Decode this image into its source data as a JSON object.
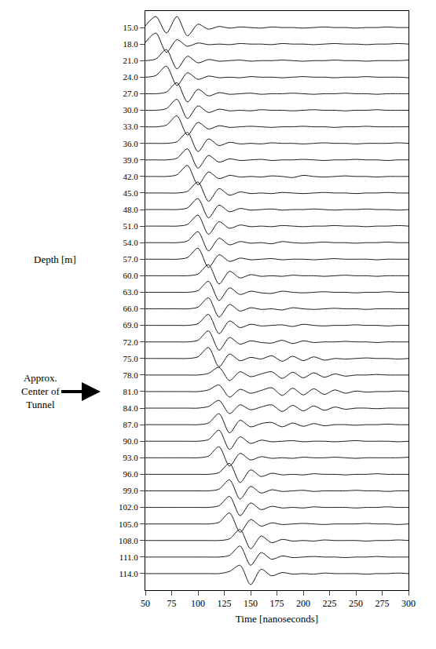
{
  "chart_data": {
    "type": "line",
    "x_label": "Time [nanoseconds]",
    "y_label": "Depth [m]",
    "annotations": [
      {
        "text": "Approx. Center of Tunnel",
        "y": 81
      }
    ],
    "color": "#000000",
    "grid": false,
    "xlim": [
      50,
      300
    ],
    "xticks": [
      50,
      75,
      100,
      125,
      150,
      175,
      200,
      225,
      250,
      275,
      300
    ],
    "ylim": [
      117,
      12
    ],
    "yticks": [
      {
        "value": 15,
        "label": "15.0"
      },
      {
        "value": 18,
        "label": "18.0"
      },
      {
        "value": 21,
        "label": "21.0"
      },
      {
        "value": 24,
        "label": "24.0"
      },
      {
        "value": 27,
        "label": "27.0"
      },
      {
        "value": 30,
        "label": "30.0"
      },
      {
        "value": 33,
        "label": "33.0"
      },
      {
        "value": 36,
        "label": "36.0"
      },
      {
        "value": 39,
        "label": "39.0"
      },
      {
        "value": 42,
        "label": "42.0"
      },
      {
        "value": 45,
        "label": "45.0"
      },
      {
        "value": 48,
        "label": "48.0"
      },
      {
        "value": 51,
        "label": "51.0"
      },
      {
        "value": 54,
        "label": "54.0"
      },
      {
        "value": 57,
        "label": "57.0"
      },
      {
        "value": 60,
        "label": "60.0"
      },
      {
        "value": 63,
        "label": "63.0"
      },
      {
        "value": 66,
        "label": "66.0"
      },
      {
        "value": 69,
        "label": "69.0"
      },
      {
        "value": 72,
        "label": "72.0"
      },
      {
        "value": 75,
        "label": "75.0"
      },
      {
        "value": 78,
        "label": "78.0"
      },
      {
        "value": 81,
        "label": "81.0"
      },
      {
        "value": 84,
        "label": "84.0"
      },
      {
        "value": 87,
        "label": "87.0"
      },
      {
        "value": 90,
        "label": "90.0"
      },
      {
        "value": 93,
        "label": "93.0"
      },
      {
        "value": 96,
        "label": "96.0"
      },
      {
        "value": 99,
        "label": "99.0"
      },
      {
        "value": 102,
        "label": "102.0"
      },
      {
        "value": 105,
        "label": "105.0"
      },
      {
        "value": 108,
        "label": "108.0"
      },
      {
        "value": 111,
        "label": "111.0"
      },
      {
        "value": 114,
        "label": "114.0"
      }
    ],
    "x": [
      50,
      60,
      70,
      80,
      90,
      100,
      110,
      120,
      130,
      140,
      150,
      160,
      170,
      180,
      190,
      200,
      210,
      220,
      230,
      240,
      250,
      260,
      270,
      280,
      290,
      300
    ],
    "series": [
      {
        "values": [
          14.7,
          13.0,
          16.0,
          13.0,
          16.5,
          14.4,
          15.3,
          14.8,
          15.1,
          14.9,
          15,
          15.1,
          14.9,
          15,
          15,
          15.1,
          15,
          14.9,
          15,
          15,
          15.1,
          15,
          15,
          14.9,
          15,
          15
        ]
      },
      {
        "values": [
          17.7,
          16,
          19.5,
          17.2,
          18.4,
          17.8,
          18.1,
          18,
          18.1,
          17.9,
          18,
          18,
          18.1,
          17.9,
          18,
          18,
          18.1,
          18,
          17.9,
          18,
          18,
          18.1,
          18,
          18,
          17.9,
          18
        ]
      },
      {
        "values": [
          21,
          20.7,
          19,
          22.5,
          20.2,
          21.4,
          20.8,
          21.1,
          21,
          20.9,
          21.1,
          21,
          21,
          20.9,
          21,
          21.1,
          21,
          21,
          20.9,
          21,
          21,
          21.1,
          21,
          21,
          21,
          20.9
        ]
      },
      {
        "values": [
          24,
          23.7,
          22,
          25.5,
          23.2,
          24.4,
          23.8,
          24.1,
          24,
          24.1,
          23.9,
          24,
          24,
          24.1,
          24,
          23.9,
          24,
          24,
          24.1,
          24,
          24,
          23.9,
          24,
          24,
          24,
          24.1
        ]
      },
      {
        "values": [
          27,
          27,
          26.7,
          25,
          28.5,
          26.2,
          27.4,
          26.8,
          27.1,
          27,
          26.9,
          27.1,
          27,
          27,
          26.9,
          27,
          27.1,
          27,
          27,
          26.9,
          27,
          27,
          27.1,
          27,
          27,
          27
        ]
      },
      {
        "values": [
          30,
          30,
          29.7,
          28,
          31.5,
          29.2,
          30.4,
          29.8,
          30.1,
          30,
          30.1,
          29.9,
          30,
          30,
          30.1,
          30,
          29.9,
          30,
          30,
          30.1,
          30,
          30,
          29.9,
          30,
          30,
          30
        ]
      },
      {
        "values": [
          33,
          33,
          32.7,
          31,
          34.5,
          32.2,
          33.4,
          32.8,
          33.1,
          33,
          32.9,
          33,
          33.1,
          33,
          33,
          32.9,
          33,
          33,
          33.1,
          33,
          33,
          32.9,
          33,
          33,
          33,
          33
        ]
      },
      {
        "values": [
          36,
          36,
          36,
          35.7,
          34,
          37.5,
          35.2,
          36.4,
          35.8,
          36.1,
          36,
          36.1,
          35.9,
          36,
          36,
          36.1,
          36,
          35.9,
          36,
          36,
          36.1,
          36,
          36,
          36,
          35.9,
          36
        ]
      },
      {
        "values": [
          39,
          39,
          39,
          38.7,
          37,
          40.5,
          38.2,
          39.4,
          38.8,
          39.1,
          39,
          38.9,
          39.1,
          39,
          39,
          38.9,
          39,
          39.1,
          39,
          39,
          38.9,
          39,
          39,
          39.1,
          39,
          39
        ]
      },
      {
        "values": [
          42,
          42,
          42,
          41.7,
          40,
          43.5,
          41.2,
          42.4,
          41.8,
          42.1,
          42,
          42.1,
          41.9,
          42,
          42.2,
          41.8,
          42,
          42.1,
          42,
          41.9,
          42,
          42,
          42.1,
          42,
          42,
          42
        ]
      },
      {
        "values": [
          45,
          45,
          45,
          45,
          44.7,
          43,
          46.5,
          44.2,
          45.4,
          44.8,
          45.1,
          45,
          45.1,
          44.9,
          45,
          45.1,
          45,
          44.9,
          45,
          45,
          45.1,
          45,
          45,
          44.9,
          45,
          45
        ]
      },
      {
        "values": [
          48,
          48,
          48,
          48,
          47.7,
          46,
          49.5,
          47.2,
          48.4,
          47.8,
          48.1,
          48,
          47.9,
          48.1,
          48,
          48,
          47.9,
          48,
          48.1,
          48,
          48,
          47.9,
          48,
          48,
          48.1,
          48
        ]
      },
      {
        "values": [
          51,
          51,
          51,
          51,
          50.7,
          49,
          52.5,
          50.2,
          51.4,
          50.8,
          51.1,
          51,
          51.1,
          50.9,
          51,
          51.1,
          51,
          51,
          50.9,
          51,
          51,
          51.1,
          51,
          51,
          50.9,
          51
        ]
      },
      {
        "values": [
          54,
          54,
          54,
          54,
          53.7,
          52,
          55.5,
          53.2,
          54.4,
          53.8,
          54.1,
          54,
          54.2,
          53.8,
          54,
          54.1,
          54,
          53.9,
          54,
          54,
          54.1,
          54,
          54,
          53.9,
          54,
          54
        ]
      },
      {
        "values": [
          57,
          57,
          57,
          57,
          56.7,
          55,
          58.5,
          56.2,
          57.4,
          56.8,
          57.1,
          57,
          56.9,
          57.1,
          57,
          57,
          57.1,
          57,
          56.9,
          57,
          57,
          57,
          57.1,
          57,
          57,
          57
        ]
      },
      {
        "values": [
          60,
          60,
          60,
          60,
          60,
          59.7,
          58,
          61.5,
          59.2,
          60.4,
          59.8,
          60.1,
          60,
          60.1,
          59.9,
          60,
          60,
          60.1,
          60,
          59.9,
          60,
          60,
          60.1,
          60,
          60,
          60
        ]
      },
      {
        "values": [
          63,
          63,
          63,
          63,
          63,
          62.7,
          61,
          64.5,
          62.2,
          63.4,
          62.8,
          63.1,
          63.2,
          62.8,
          63,
          63.1,
          63,
          62.9,
          63,
          63,
          63.1,
          63,
          63,
          62.9,
          63,
          63
        ]
      },
      {
        "values": [
          66,
          66,
          66,
          66,
          66,
          65.7,
          64,
          67.5,
          65.2,
          66.4,
          65.8,
          66.1,
          66,
          66.2,
          65.8,
          66,
          66.1,
          66,
          65.9,
          66,
          66,
          66.1,
          66,
          66,
          66,
          66
        ]
      },
      {
        "values": [
          69,
          69,
          69,
          69,
          69,
          68.7,
          67,
          70.5,
          68.2,
          69.4,
          68.8,
          69.1,
          69,
          68.9,
          69.2,
          68.8,
          69,
          69.1,
          69,
          69,
          68.9,
          69,
          69,
          69.1,
          69,
          69
        ]
      },
      {
        "values": [
          72,
          72,
          72,
          72,
          72,
          71.7,
          70,
          73.5,
          71.2,
          72.4,
          71.8,
          72.1,
          72.2,
          71.7,
          72.3,
          71.8,
          72.1,
          72,
          72,
          71.9,
          72,
          72,
          72.1,
          72,
          72,
          72
        ]
      },
      {
        "values": [
          75,
          75,
          75,
          75,
          75,
          74.7,
          73,
          76.5,
          74.2,
          75.4,
          74.8,
          75.1,
          74.5,
          75.5,
          74.6,
          75.4,
          74.7,
          75.3,
          75,
          75.1,
          75,
          74.9,
          75,
          75,
          75.1,
          75
        ]
      },
      {
        "values": [
          78,
          78,
          78,
          78,
          78,
          78,
          77.7,
          76.6,
          79,
          77.4,
          78.3,
          77.8,
          77.4,
          78.6,
          77.5,
          78.5,
          77.6,
          78.4,
          77.8,
          78.2,
          78,
          78,
          77.9,
          78,
          78,
          78
        ]
      },
      {
        "values": [
          81,
          81,
          81,
          81,
          81,
          81,
          80.7,
          79.8,
          82,
          80.6,
          81.3,
          80.8,
          80.3,
          81.7,
          80.4,
          81.6,
          80.5,
          81.5,
          80.7,
          81.3,
          80.9,
          81.1,
          81,
          81,
          80.9,
          81
        ]
      },
      {
        "values": [
          84,
          84,
          84,
          84,
          84,
          84,
          83.7,
          82.6,
          85,
          83.4,
          84.3,
          83.8,
          83.4,
          84.6,
          83.5,
          84.5,
          83.6,
          84.4,
          83.8,
          84.2,
          84,
          84,
          84.1,
          84,
          84,
          84
        ]
      },
      {
        "values": [
          87,
          87,
          87,
          87,
          87,
          87,
          86.7,
          85,
          88.5,
          86.2,
          87.4,
          86.8,
          86.6,
          87.4,
          86.7,
          87.3,
          86.8,
          87.2,
          87,
          87,
          87.1,
          87,
          87,
          86.9,
          87,
          87
        ]
      },
      {
        "values": [
          90,
          90,
          90,
          90,
          90,
          90,
          89.7,
          88,
          91.5,
          89.2,
          90.4,
          89.8,
          90.1,
          90,
          89.9,
          90.1,
          90,
          90,
          90.1,
          90,
          89.9,
          90,
          90,
          90,
          90.1,
          90
        ]
      },
      {
        "values": [
          93,
          93,
          93,
          93,
          93,
          93,
          92.7,
          91,
          94.5,
          92.2,
          93.4,
          92.8,
          93.1,
          93,
          93.1,
          92.9,
          93,
          93,
          92.9,
          93,
          93.1,
          93,
          93,
          93,
          93,
          92.9
        ]
      },
      {
        "values": [
          96,
          96,
          96,
          96,
          96,
          96,
          96,
          95.7,
          94,
          97.5,
          95.2,
          96.4,
          95.8,
          96.1,
          96,
          96.1,
          95.9,
          96,
          96,
          96.1,
          96,
          96,
          95.9,
          96,
          96,
          96
        ]
      },
      {
        "values": [
          99,
          99,
          99,
          99,
          99,
          99,
          99,
          98.7,
          97,
          100.5,
          98.2,
          99.4,
          98.8,
          99.1,
          99,
          98.9,
          99.1,
          99,
          99,
          99,
          98.9,
          99,
          99,
          99.1,
          99,
          99
        ]
      },
      {
        "values": [
          102,
          102,
          102,
          102,
          102,
          102,
          102,
          101.7,
          100,
          103.5,
          101.2,
          102.4,
          101.8,
          102.1,
          102,
          102.1,
          101.9,
          102,
          102,
          102,
          102.1,
          102,
          102,
          101.9,
          102,
          102
        ]
      },
      {
        "values": [
          105,
          105,
          105,
          105,
          105,
          105,
          105,
          104.7,
          103,
          106.5,
          104.2,
          105.4,
          104.8,
          105.1,
          105,
          104.9,
          105,
          105.1,
          105,
          105,
          105,
          104.9,
          105,
          105,
          105.1,
          105
        ]
      },
      {
        "values": [
          108,
          108,
          108,
          108,
          108,
          108,
          108,
          108,
          107.7,
          106,
          109.5,
          107.2,
          108.4,
          107.8,
          108.1,
          108,
          108.1,
          107.9,
          108,
          108,
          108,
          108.1,
          108,
          108,
          107.9,
          108
        ]
      },
      {
        "values": [
          111,
          111,
          111,
          111,
          111,
          111,
          111,
          111,
          110.7,
          109,
          112.5,
          110.2,
          111.4,
          110.8,
          111.1,
          111,
          110.9,
          111,
          111,
          111.1,
          111,
          111,
          110.9,
          111,
          111,
          111
        ]
      },
      {
        "values": [
          114,
          114,
          114,
          114,
          114,
          114,
          114,
          114,
          113.6,
          112.5,
          116,
          113.2,
          114.4,
          113.8,
          114.1,
          114,
          114.1,
          113.9,
          114,
          114,
          114,
          114.1,
          114,
          114,
          113.9,
          114
        ]
      }
    ]
  }
}
